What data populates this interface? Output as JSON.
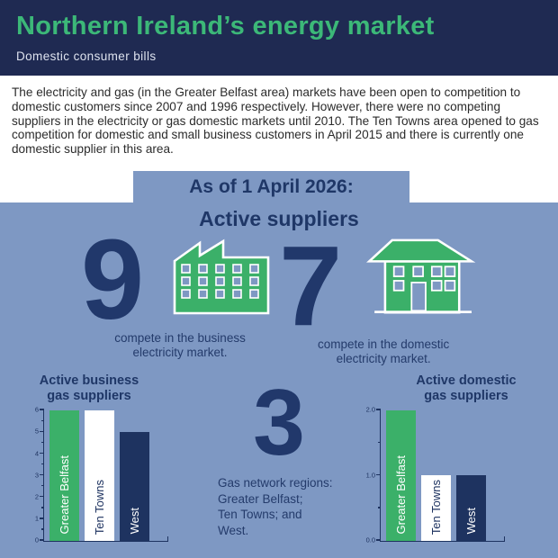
{
  "colors": {
    "header_bg": "#1f2a52",
    "title_green": "#3cb878",
    "panel_blue": "#7e98c3",
    "accent_navy": "#21386b",
    "icon_green": "#3bb069",
    "bar_navy": "#1e3360",
    "bar_white": "#ffffff"
  },
  "header": {
    "title": "Northern Ireland’s energy market",
    "subtitle": "Domestic consumer bills"
  },
  "intro": {
    "text": "The electricity and gas (in the Greater Belfast area) markets have been open to competition to domestic customers since 2007 and 1996 respectively. However, there were no competing suppliers in the electricity or gas domestic markets until 2010. The Ten Towns area opened to gas competition for domestic and small business customers in April 2015 and there is currently one domestic supplier in this area."
  },
  "banner": {
    "date_label": "As of 1 April 2026:",
    "section_title": "Active suppliers"
  },
  "stats": [
    {
      "value": "9",
      "icon": "factory-icon",
      "caption": "compete in the business electricity market."
    },
    {
      "value": "7",
      "icon": "house-icon",
      "caption": "compete in the domestic electricity market."
    }
  ],
  "gas_regions": {
    "value": "3",
    "caption": "Gas network regions:\nGreater Belfast;\nTen Towns; and\nWest."
  },
  "chart_data": [
    {
      "type": "bar",
      "title": "Active business\ngas suppliers",
      "categories": [
        "Greater Belfast",
        "Ten Towns",
        "West"
      ],
      "values": [
        6,
        6,
        5
      ],
      "xlabel": "",
      "ylabel": "",
      "ylim": [
        0,
        6
      ],
      "ytick_values": [
        0,
        1,
        2,
        3,
        4,
        5,
        6
      ],
      "ytick_labels": [
        "0",
        "1",
        "2",
        "3",
        "4",
        "5",
        "6"
      ],
      "ytick_minor": [
        0.5,
        1.5,
        2.5,
        3.5,
        4.5,
        5.5
      ],
      "bar_colors": [
        "#3bb069",
        "#ffffff",
        "#1e3360"
      ],
      "label_colors": [
        "#ffffff",
        "#1e3360",
        "#ffffff"
      ],
      "grid": false,
      "legend": "none"
    },
    {
      "type": "bar",
      "title": "Active domestic\ngas suppliers",
      "categories": [
        "Greater Belfast",
        "Ten Towns",
        "West"
      ],
      "values": [
        2,
        1,
        1
      ],
      "xlabel": "",
      "ylabel": "",
      "ylim": [
        0,
        2
      ],
      "ytick_values": [
        0,
        1,
        2
      ],
      "ytick_labels": [
        "0.0",
        "1.0",
        "2.0"
      ],
      "ytick_minor": [
        0.5,
        1.5
      ],
      "bar_colors": [
        "#3bb069",
        "#ffffff",
        "#1e3360"
      ],
      "label_colors": [
        "#ffffff",
        "#1e3360",
        "#ffffff"
      ],
      "grid": false,
      "legend": "none"
    }
  ]
}
